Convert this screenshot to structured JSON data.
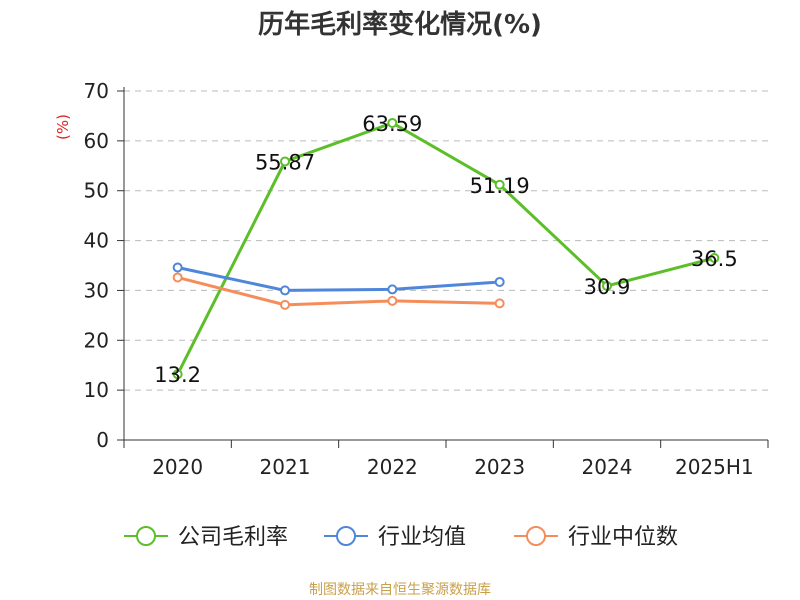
{
  "title": "历年毛利率变化情况(%)",
  "source": "制图数据来自恒生聚源数据库",
  "chart_data": {
    "type": "line",
    "title": "历年毛利率变化情况(%)",
    "ylabel": "(%)",
    "xlabel": "",
    "categories": [
      "2020",
      "2021",
      "2022",
      "2023",
      "2024",
      "2025H1"
    ],
    "ylim": [
      0,
      70
    ],
    "yticks": [
      0,
      10,
      20,
      30,
      40,
      50,
      60,
      70
    ],
    "grid": true,
    "legend_position": "bottom",
    "series": [
      {
        "name": "公司毛利率",
        "color": "#5cbf2a",
        "values": [
          13.2,
          55.87,
          63.59,
          51.19,
          30.9,
          36.5
        ],
        "labels": [
          "13.2",
          "55.87",
          "63.59",
          "51.19",
          "30.9",
          "36.5"
        ],
        "show_labels": true
      },
      {
        "name": "行业均值",
        "color": "#4f86d9",
        "values": [
          34.6,
          30.0,
          30.2,
          31.7,
          null,
          null
        ],
        "show_labels": false
      },
      {
        "name": "行业中位数",
        "color": "#f58d5a",
        "values": [
          32.6,
          27.1,
          27.9,
          27.4,
          null,
          null
        ],
        "show_labels": false
      }
    ]
  }
}
